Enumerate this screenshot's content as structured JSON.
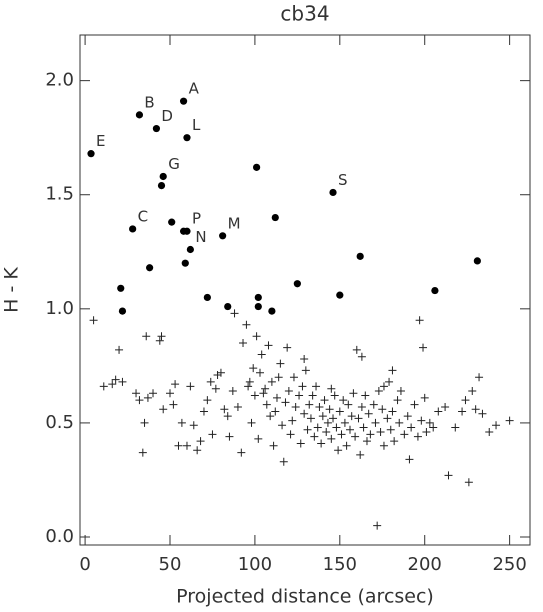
{
  "chart_data": {
    "type": "scatter",
    "title": "cb34",
    "x_label": "Projected distance (arcsec)",
    "y_label": "H - K",
    "xlim": [
      -3,
      262
    ],
    "ylim": [
      -0.035,
      2.2
    ],
    "xticks": [
      0,
      50,
      100,
      150,
      200,
      250
    ],
    "yticks": [
      {
        "value": 0,
        "label": "0.0"
      },
      {
        "value": 0.5,
        "label": "0.5"
      },
      {
        "value": 1,
        "label": "1.0"
      },
      {
        "value": 1.5,
        "label": "1.5"
      },
      {
        "value": 2,
        "label": "2.0"
      }
    ],
    "series": [
      {
        "marker": "plus",
        "color": "#222222",
        "x": [
          5,
          11,
          16,
          18,
          20,
          22,
          30,
          32,
          34,
          35,
          36,
          37,
          40,
          44,
          45,
          46,
          50,
          52,
          53,
          55,
          57,
          60,
          62,
          64,
          66,
          68,
          70,
          72,
          74,
          75,
          77,
          78,
          80,
          82,
          84,
          85,
          87,
          88,
          90,
          92,
          93,
          95,
          96,
          97,
          98,
          99,
          100,
          101,
          102,
          103,
          104,
          105,
          106,
          107,
          108,
          109,
          110,
          111,
          112,
          113,
          114,
          115,
          116,
          117,
          118,
          119,
          120,
          121,
          122,
          123,
          124,
          126,
          127,
          128,
          129,
          130,
          131,
          132,
          133,
          134,
          135,
          136,
          137,
          138,
          139,
          140,
          141,
          142,
          143,
          144,
          145,
          146,
          147,
          148,
          149,
          150,
          151,
          152,
          153,
          154,
          155,
          156,
          157,
          158,
          159,
          160,
          161,
          162,
          163,
          164,
          165,
          166,
          167,
          168,
          170,
          171,
          172,
          173,
          174,
          175,
          176,
          178,
          179,
          180,
          181,
          182,
          184,
          185,
          186,
          188,
          190,
          191,
          192,
          194,
          196,
          198,
          200,
          201,
          203,
          205,
          208,
          212,
          214,
          218,
          222,
          224,
          226,
          228,
          230,
          232,
          234,
          238,
          242,
          250,
          197,
          199,
          181,
          163,
          145,
          129,
          176
        ],
        "y": [
          0.95,
          0.66,
          0.67,
          0.69,
          0.82,
          0.68,
          0.63,
          0.6,
          0.37,
          0.5,
          0.88,
          0.61,
          0.63,
          0.86,
          0.88,
          0.56,
          0.63,
          0.58,
          0.67,
          0.4,
          0.5,
          0.4,
          0.66,
          0.49,
          0.38,
          0.42,
          0.55,
          0.6,
          0.68,
          0.45,
          0.65,
          0.71,
          0.72,
          0.56,
          0.53,
          0.44,
          0.64,
          0.98,
          0.57,
          0.37,
          0.85,
          0.93,
          0.66,
          0.68,
          0.5,
          0.74,
          0.62,
          0.88,
          0.43,
          0.72,
          0.8,
          0.63,
          0.65,
          0.58,
          0.84,
          0.53,
          0.68,
          0.4,
          0.55,
          0.61,
          0.7,
          0.76,
          0.49,
          0.33,
          0.59,
          0.83,
          0.64,
          0.45,
          0.51,
          0.7,
          0.57,
          0.62,
          0.41,
          0.66,
          0.54,
          0.73,
          0.47,
          0.58,
          0.52,
          0.62,
          0.44,
          0.66,
          0.48,
          0.57,
          0.41,
          0.53,
          0.6,
          0.46,
          0.5,
          0.56,
          0.43,
          0.52,
          0.62,
          0.48,
          0.38,
          0.55,
          0.45,
          0.6,
          0.5,
          0.4,
          0.58,
          0.47,
          0.53,
          0.63,
          0.44,
          0.82,
          0.52,
          0.36,
          0.57,
          0.48,
          0.62,
          0.42,
          0.54,
          0.45,
          0.58,
          0.5,
          0.05,
          0.64,
          0.46,
          0.56,
          0.4,
          0.52,
          0.68,
          0.47,
          0.55,
          0.42,
          0.6,
          0.5,
          0.64,
          0.45,
          0.53,
          0.34,
          0.48,
          0.58,
          0.44,
          0.51,
          0.61,
          0.46,
          0.5,
          0.48,
          0.55,
          0.57,
          0.27,
          0.48,
          0.55,
          0.6,
          0.24,
          0.64,
          0.56,
          0.7,
          0.54,
          0.46,
          0.49,
          0.51,
          0.95,
          0.83,
          0.73,
          0.79,
          0.65,
          0.78,
          0.66
        ]
      },
      {
        "marker": "dot",
        "color": "#000000",
        "x": [
          58,
          32,
          42,
          60,
          3.5,
          101,
          46,
          45,
          146,
          112,
          51,
          28,
          58,
          60,
          81,
          62,
          59,
          162,
          231,
          38,
          125,
          21,
          150,
          206,
          72,
          102,
          22,
          84,
          102,
          110
        ],
        "y": [
          1.91,
          1.85,
          1.79,
          1.75,
          1.68,
          1.62,
          1.58,
          1.54,
          1.51,
          1.4,
          1.38,
          1.35,
          1.34,
          1.34,
          1.32,
          1.26,
          1.2,
          1.23,
          1.21,
          1.18,
          1.11,
          1.09,
          1.06,
          1.08,
          1.05,
          1.05,
          0.99,
          1.01,
          1.01,
          0.99
        ],
        "point_labels": [
          "A",
          "B",
          "D",
          "L",
          "E",
          null,
          "G",
          null,
          "S",
          null,
          null,
          "C",
          null,
          "P",
          "M",
          "N",
          null,
          null,
          null,
          null,
          null,
          null,
          null,
          null,
          null,
          null,
          null,
          null,
          null,
          null
        ]
      }
    ]
  }
}
